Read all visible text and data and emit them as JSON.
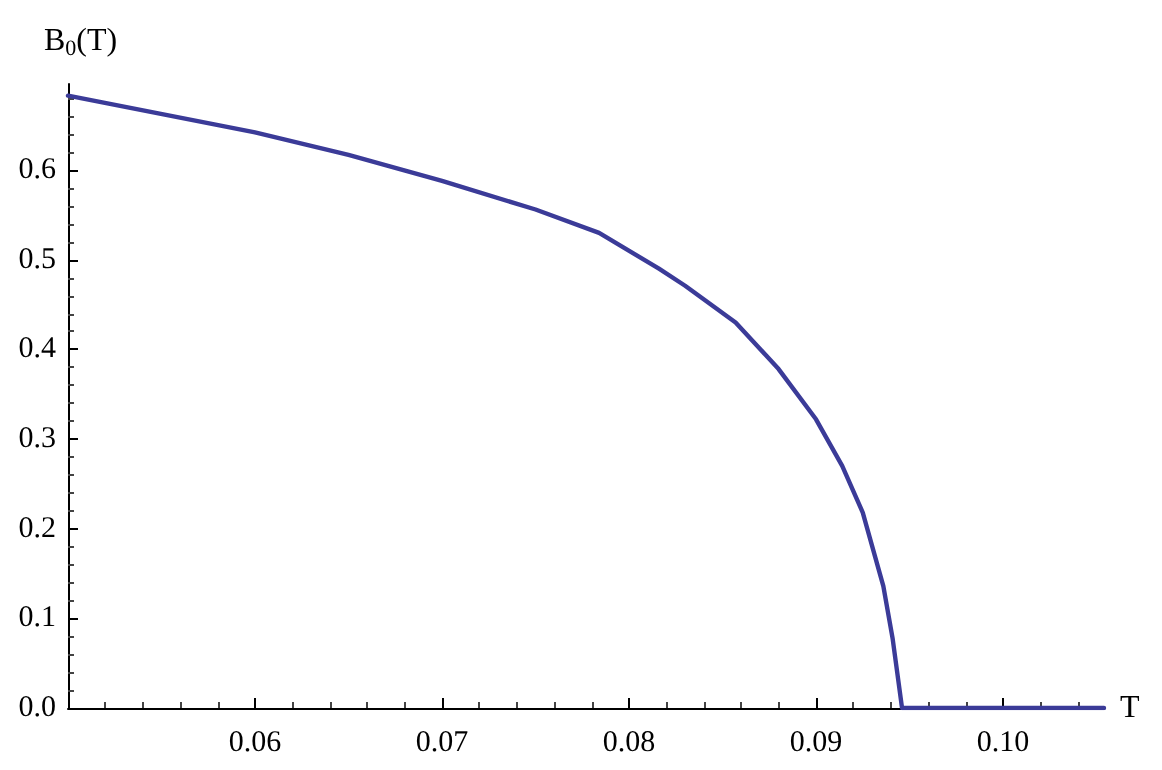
{
  "chart_data": {
    "type": "line",
    "xlabel": "T",
    "ylabel": "B$_{0}$(T)",
    "xlim": [
      0.05,
      0.1054
    ],
    "xticks": [
      0.06,
      0.07,
      0.08,
      0.09,
      {
        "value": 0.1,
        "label": "0.10"
      }
    ],
    "ylim": [
      0,
      0.696
    ],
    "yticks": [
      {
        "value": 0,
        "label": "0.0"
      },
      0.1,
      0.2,
      0.3,
      0.4,
      0.5,
      0.6
    ],
    "grid": false,
    "marker": "none",
    "line_style": "solid",
    "series": [
      {
        "color": "#3b3b98",
        "x": [
          0.05,
          0.06,
          0.065,
          0.07,
          0.075,
          0.0784,
          0.0816,
          0.083,
          0.0857,
          0.088,
          0.09,
          0.0914,
          0.0925,
          0.0936,
          0.0941,
          0.0946,
          0.1054
        ],
        "values": [
          0.683,
          0.642,
          0.617,
          0.588,
          0.556,
          0.53,
          0.49,
          0.471,
          0.43,
          0.378,
          0.322,
          0.27,
          0.218,
          0.136,
          0.077,
          0,
          0
        ]
      }
    ]
  }
}
